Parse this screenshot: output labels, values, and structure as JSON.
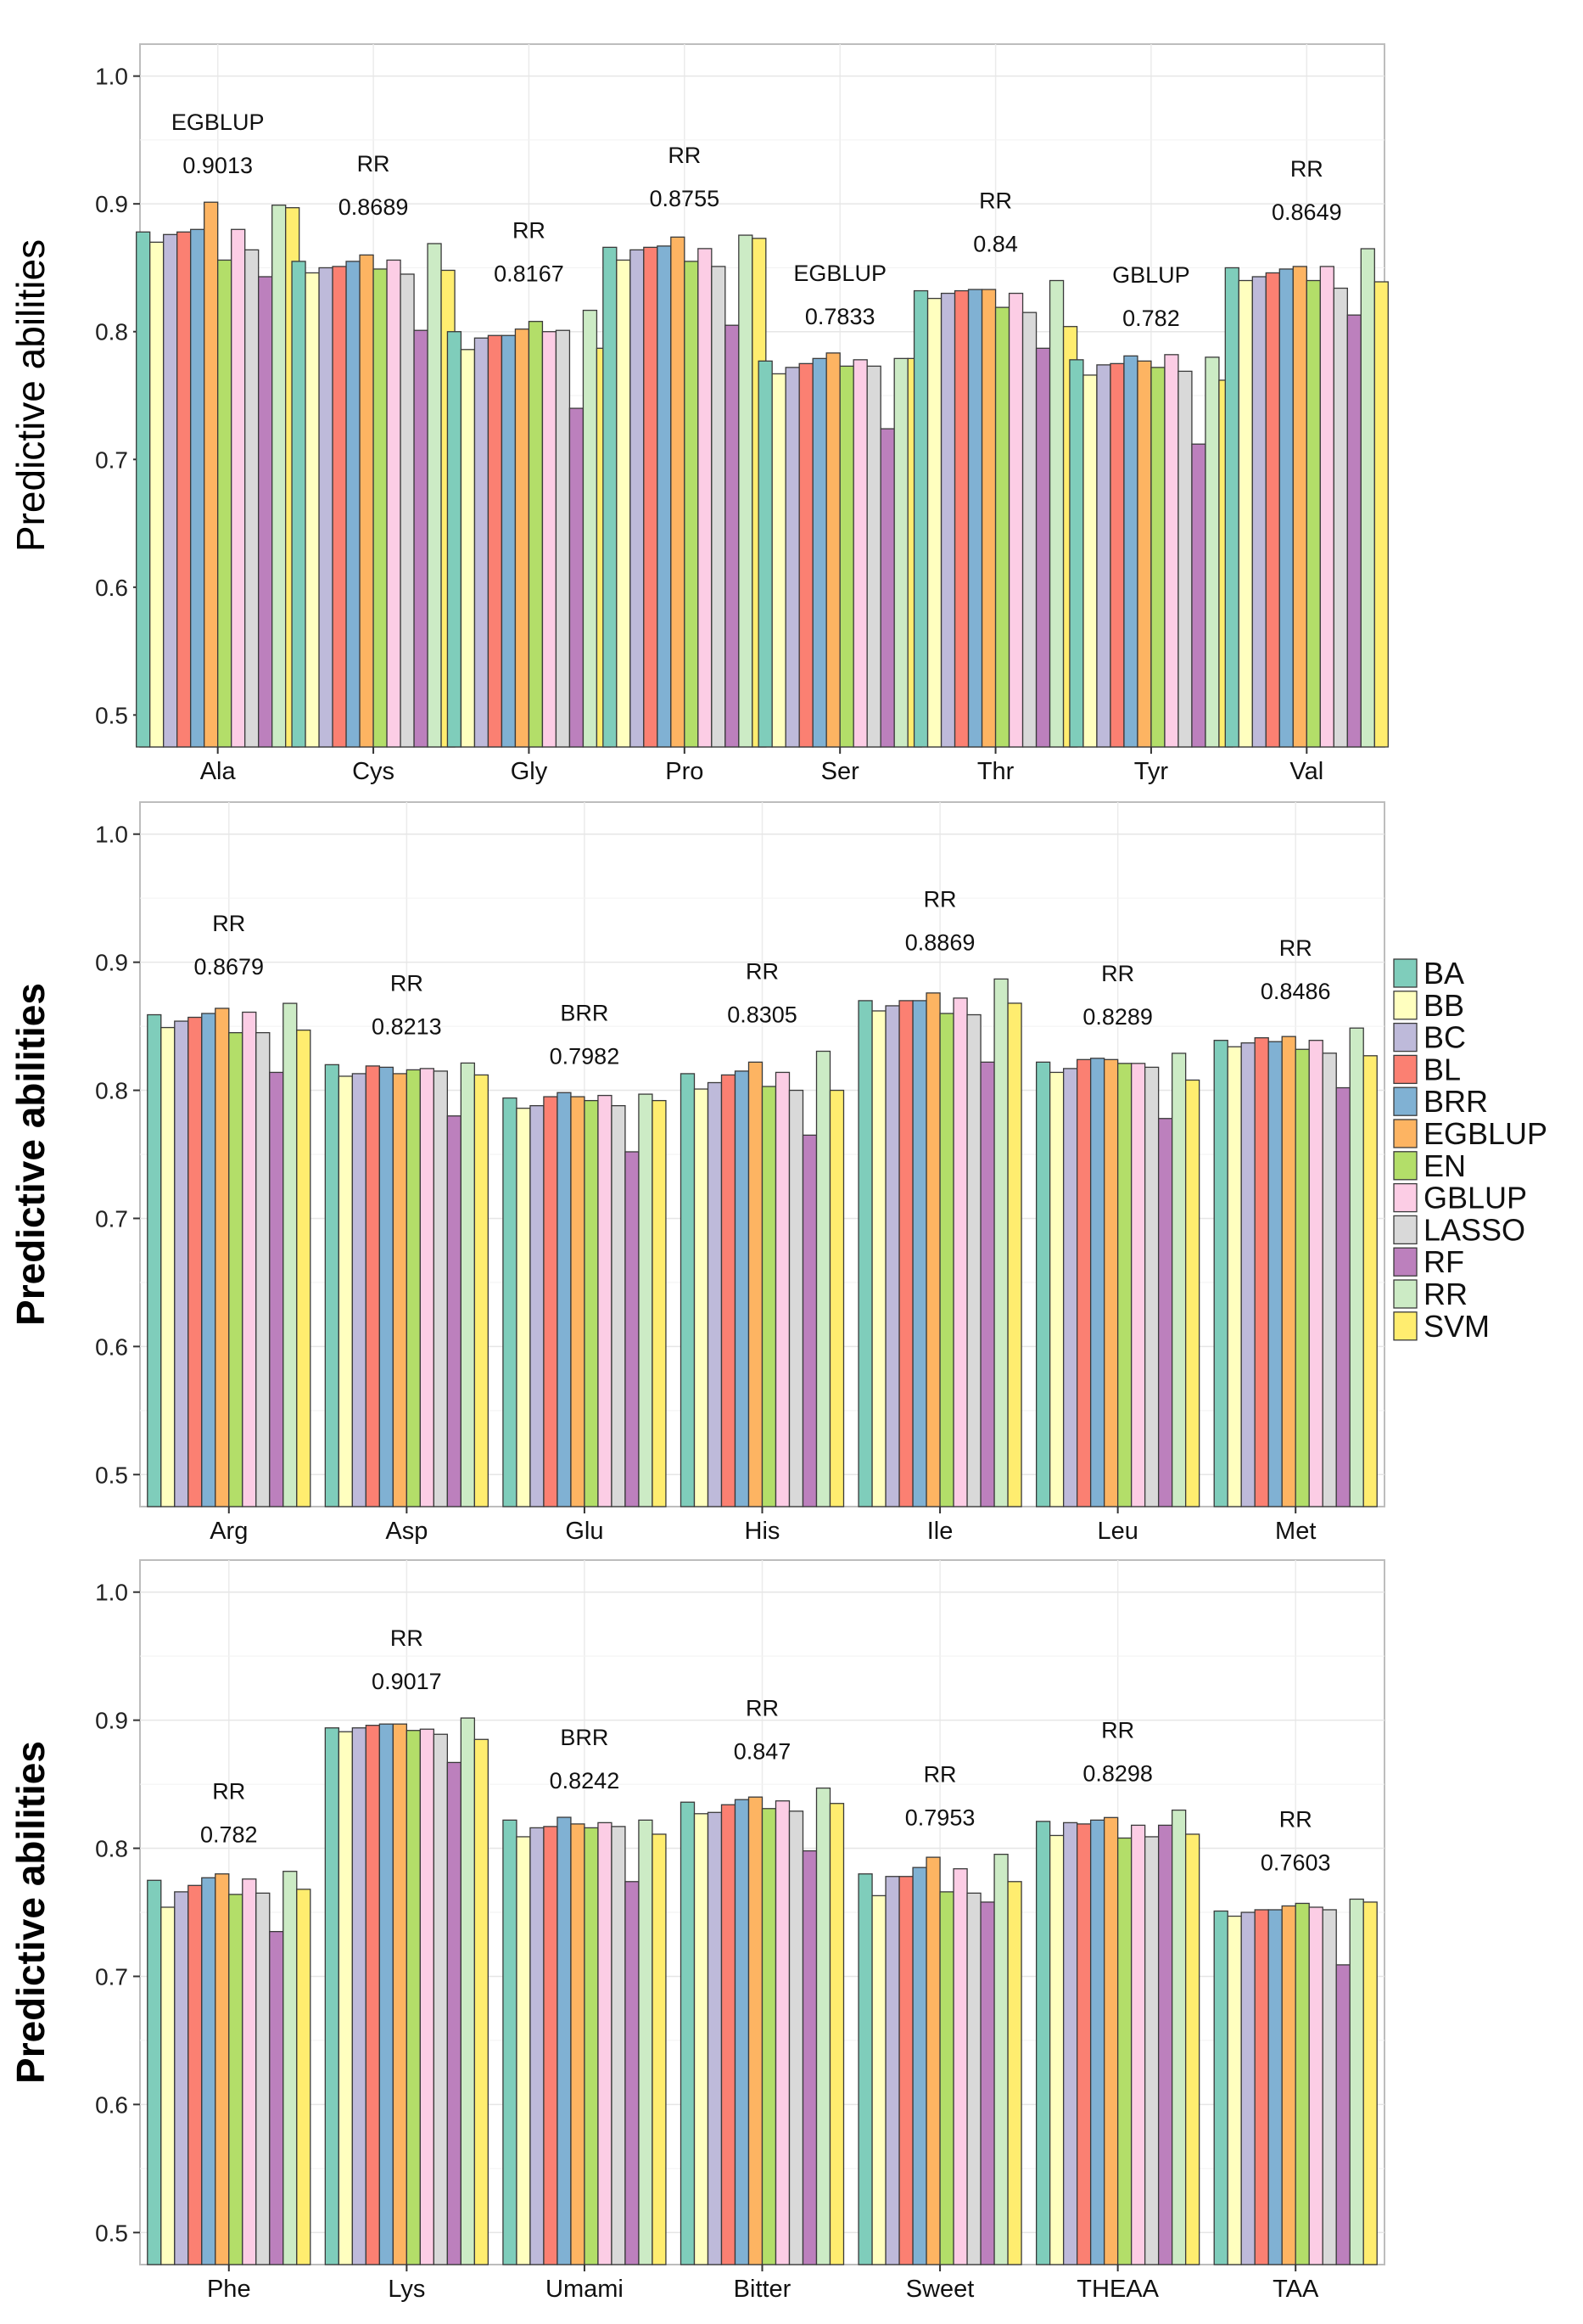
{
  "legend": {
    "items": [
      "BA",
      "BB",
      "BC",
      "BL",
      "BRR",
      "EGBLUP",
      "EN",
      "GBLUP",
      "LASSO",
      "RF",
      "RR",
      "SVM"
    ],
    "colors": [
      "#7fcdbb",
      "#ffffbf",
      "#bebada",
      "#fb8072",
      "#80b1d3",
      "#fdb462",
      "#b3de69",
      "#fccde5",
      "#d9d9d9",
      "#bc80bd",
      "#ccebc5",
      "#ffed6f"
    ]
  },
  "chart_data": [
    {
      "type": "bar",
      "ylabel": "Predictive abilities",
      "ylim": [
        0.475,
        1.025
      ],
      "yticks": [
        "0.5",
        "0.6",
        "0.7",
        "0.8",
        "0.9",
        "1.0"
      ],
      "grid": true,
      "categories": [
        "Ala",
        "Cys",
        "Gly",
        "Pro",
        "Ser",
        "Thr",
        "Tyr",
        "Val"
      ],
      "best_method": [
        "EGBLUP",
        "RR",
        "RR",
        "RR",
        "EGBLUP",
        "RR",
        "GBLUP",
        "RR"
      ],
      "best_value": [
        "0.9013",
        "0.8689",
        "0.8167",
        "0.8755",
        "0.7833",
        "0.84",
        "0.782",
        "0.8649"
      ],
      "series": [
        {
          "name": "BA",
          "values": [
            0.878,
            0.855,
            0.8,
            0.866,
            0.777,
            0.832,
            0.778,
            0.85
          ]
        },
        {
          "name": "BB",
          "values": [
            0.87,
            0.846,
            0.786,
            0.856,
            0.767,
            0.826,
            0.766,
            0.84
          ]
        },
        {
          "name": "BC",
          "values": [
            0.876,
            0.85,
            0.795,
            0.864,
            0.772,
            0.83,
            0.774,
            0.843
          ]
        },
        {
          "name": "BL",
          "values": [
            0.878,
            0.851,
            0.797,
            0.866,
            0.775,
            0.832,
            0.775,
            0.846
          ]
        },
        {
          "name": "BRR",
          "values": [
            0.88,
            0.855,
            0.797,
            0.867,
            0.779,
            0.833,
            0.781,
            0.849
          ]
        },
        {
          "name": "EGBLUP",
          "values": [
            0.9013,
            0.86,
            0.802,
            0.874,
            0.7833,
            0.833,
            0.777,
            0.851
          ]
        },
        {
          "name": "EN",
          "values": [
            0.856,
            0.849,
            0.808,
            0.855,
            0.773,
            0.819,
            0.772,
            0.84
          ]
        },
        {
          "name": "GBLUP",
          "values": [
            0.88,
            0.856,
            0.8,
            0.865,
            0.778,
            0.83,
            0.782,
            0.851
          ]
        },
        {
          "name": "LASSO",
          "values": [
            0.864,
            0.845,
            0.801,
            0.851,
            0.773,
            0.815,
            0.769,
            0.834
          ]
        },
        {
          "name": "RF",
          "values": [
            0.843,
            0.801,
            0.74,
            0.805,
            0.724,
            0.787,
            0.712,
            0.813
          ]
        },
        {
          "name": "RR",
          "values": [
            0.899,
            0.8689,
            0.8167,
            0.8755,
            0.779,
            0.84,
            0.78,
            0.8649
          ]
        },
        {
          "name": "SVM",
          "values": [
            0.897,
            0.848,
            0.787,
            0.873,
            0.779,
            0.804,
            0.762,
            0.839
          ]
        }
      ]
    },
    {
      "type": "bar",
      "ylabel": "Predictive abilities",
      "ylim": [
        0.475,
        1.025
      ],
      "yticks": [
        "0.5",
        "0.6",
        "0.7",
        "0.8",
        "0.9",
        "1.0"
      ],
      "grid": true,
      "categories": [
        "Arg",
        "Asp",
        "Glu",
        "His",
        "Ile",
        "Leu",
        "Met"
      ],
      "best_method": [
        "RR",
        "RR",
        "BRR",
        "RR",
        "RR",
        "RR",
        "RR"
      ],
      "best_value": [
        "0.8679",
        "0.8213",
        "0.7982",
        "0.8305",
        "0.8869",
        "0.8289",
        "0.8486"
      ],
      "series": [
        {
          "name": "BA",
          "values": [
            0.859,
            0.82,
            0.794,
            0.813,
            0.87,
            0.822,
            0.839
          ]
        },
        {
          "name": "BB",
          "values": [
            0.849,
            0.811,
            0.786,
            0.801,
            0.862,
            0.814,
            0.834
          ]
        },
        {
          "name": "BC",
          "values": [
            0.854,
            0.813,
            0.788,
            0.806,
            0.866,
            0.817,
            0.837
          ]
        },
        {
          "name": "BL",
          "values": [
            0.857,
            0.819,
            0.795,
            0.812,
            0.87,
            0.824,
            0.841
          ]
        },
        {
          "name": "BRR",
          "values": [
            0.86,
            0.818,
            0.7982,
            0.815,
            0.87,
            0.825,
            0.838
          ]
        },
        {
          "name": "EGBLUP",
          "values": [
            0.864,
            0.813,
            0.795,
            0.822,
            0.876,
            0.824,
            0.842
          ]
        },
        {
          "name": "EN",
          "values": [
            0.845,
            0.816,
            0.792,
            0.803,
            0.86,
            0.821,
            0.832
          ]
        },
        {
          "name": "GBLUP",
          "values": [
            0.861,
            0.817,
            0.796,
            0.814,
            0.872,
            0.821,
            0.839
          ]
        },
        {
          "name": "LASSO",
          "values": [
            0.845,
            0.815,
            0.788,
            0.8,
            0.859,
            0.818,
            0.829
          ]
        },
        {
          "name": "RF",
          "values": [
            0.814,
            0.78,
            0.752,
            0.765,
            0.822,
            0.778,
            0.802
          ]
        },
        {
          "name": "RR",
          "values": [
            0.8679,
            0.8213,
            0.797,
            0.8305,
            0.8869,
            0.8289,
            0.8486
          ]
        },
        {
          "name": "SVM",
          "values": [
            0.847,
            0.812,
            0.792,
            0.8,
            0.868,
            0.808,
            0.827
          ]
        }
      ]
    },
    {
      "type": "bar",
      "ylabel": "Predictive abilities",
      "ylim": [
        0.475,
        1.025
      ],
      "yticks": [
        "0.5",
        "0.6",
        "0.7",
        "0.8",
        "0.9",
        "1.0"
      ],
      "grid": true,
      "categories": [
        "Phe",
        "Lys",
        "Umami",
        "Bitter",
        "Sweet",
        "THEAA",
        "TAA"
      ],
      "best_method": [
        "RR",
        "RR",
        "BRR",
        "RR",
        "RR",
        "RR",
        "RR"
      ],
      "best_value": [
        "0.782",
        "0.9017",
        "0.8242",
        "0.847",
        "0.7953",
        "0.8298",
        "0.7603"
      ],
      "series": [
        {
          "name": "BA",
          "values": [
            0.775,
            0.894,
            0.822,
            0.836,
            0.78,
            0.821,
            0.751
          ]
        },
        {
          "name": "BB",
          "values": [
            0.754,
            0.891,
            0.809,
            0.827,
            0.763,
            0.81,
            0.747
          ]
        },
        {
          "name": "BC",
          "values": [
            0.766,
            0.894,
            0.816,
            0.828,
            0.778,
            0.82,
            0.75
          ]
        },
        {
          "name": "BL",
          "values": [
            0.771,
            0.896,
            0.817,
            0.834,
            0.778,
            0.819,
            0.752
          ]
        },
        {
          "name": "BRR",
          "values": [
            0.777,
            0.897,
            0.8242,
            0.838,
            0.785,
            0.822,
            0.752
          ]
        },
        {
          "name": "EGBLUP",
          "values": [
            0.78,
            0.897,
            0.819,
            0.84,
            0.793,
            0.824,
            0.755
          ]
        },
        {
          "name": "EN",
          "values": [
            0.764,
            0.892,
            0.816,
            0.831,
            0.766,
            0.808,
            0.757
          ]
        },
        {
          "name": "GBLUP",
          "values": [
            0.776,
            0.893,
            0.82,
            0.837,
            0.784,
            0.818,
            0.754
          ]
        },
        {
          "name": "LASSO",
          "values": [
            0.765,
            0.889,
            0.817,
            0.829,
            0.765,
            0.809,
            0.752
          ]
        },
        {
          "name": "RF",
          "values": [
            0.735,
            0.867,
            0.774,
            0.798,
            0.758,
            0.818,
            0.709
          ]
        },
        {
          "name": "RR",
          "values": [
            0.782,
            0.9017,
            0.822,
            0.847,
            0.7953,
            0.8298,
            0.7603
          ]
        },
        {
          "name": "SVM",
          "values": [
            0.768,
            0.885,
            0.811,
            0.835,
            0.774,
            0.811,
            0.758
          ]
        }
      ]
    }
  ]
}
